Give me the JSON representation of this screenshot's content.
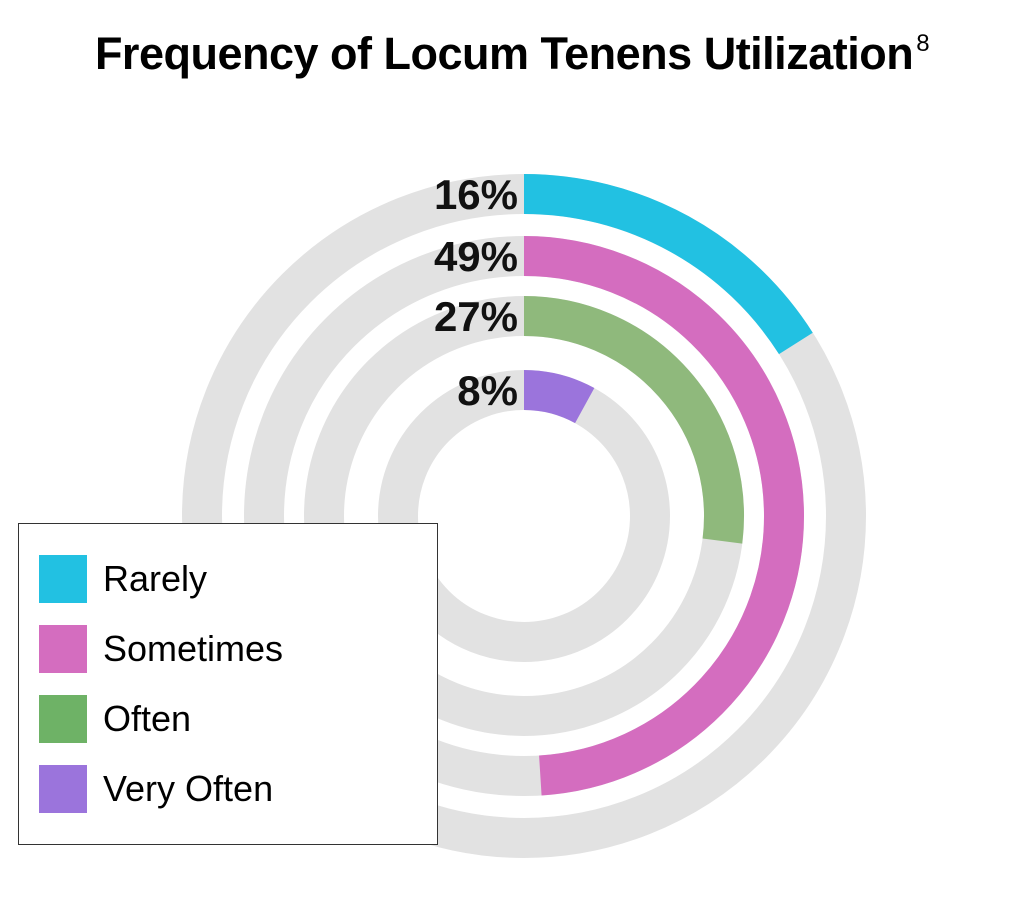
{
  "chart_data": {
    "type": "radial-bar",
    "title": "Frequency of Locum Tenens Utilization",
    "title_superscript": "8",
    "categories": [
      "Rarely",
      "Sometimes",
      "Often",
      "Very Often"
    ],
    "values": [
      16,
      49,
      27,
      8
    ],
    "value_labels": [
      "16%",
      "49%",
      "27%",
      "8%"
    ],
    "unit": "%",
    "colors": [
      "#22c1e2",
      "#d46dbf",
      "#8fb97c",
      "#9b74dc"
    ],
    "track_color": "#e2e2e2",
    "legend": {
      "position": "bottom-left",
      "entries": [
        {
          "label": "Rarely",
          "color": "#22c1e2"
        },
        {
          "label": "Sometimes",
          "color": "#d46dbf"
        },
        {
          "label": "Often",
          "color": "#6eb266"
        },
        {
          "label": "Very Often",
          "color": "#9b74dc"
        }
      ]
    }
  }
}
